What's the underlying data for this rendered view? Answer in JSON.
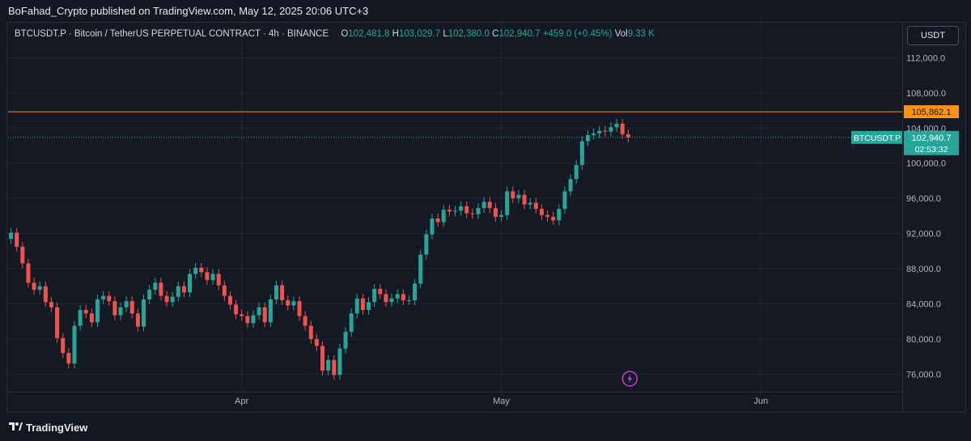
{
  "header": {
    "publisher_line": "BoFahad_Crypto published on TradingView.com, May 12, 2025 20:06 UTC+3"
  },
  "legend": {
    "symbol_line": "BTCUSDT.P · Bitcoin / TetherUS PERPETUAL CONTRACT · 4h · BINANCE",
    "o_label": "O",
    "o_value": "102,481.8",
    "h_label": "H",
    "h_value": "103,029.7",
    "l_label": "L",
    "l_value": "102,380.0",
    "c_label": "C",
    "c_value": "102,940.7",
    "change": "+459.0 (+0.45%)",
    "vol_label": "Vol",
    "vol_value": "9.33 K"
  },
  "currency_button": "USDT",
  "footer": {
    "brand": "TradingView"
  },
  "colors": {
    "up": "#26a69a",
    "down": "#ef5350",
    "resistance_line": "#f7931a",
    "background": "#151924",
    "grid": "#222633"
  },
  "chart_data": {
    "type": "line",
    "series": [
      {
        "values": [
          92100,
          90500,
          88600,
          86400,
          85600,
          86000,
          84200,
          83600,
          80100,
          78400,
          77200,
          81500,
          83300,
          82900,
          81900,
          84500,
          84900,
          84300,
          82700,
          83600,
          84300,
          82900,
          81400,
          84500,
          85600,
          86400,
          84900,
          84200,
          84800,
          86000,
          85300,
          87400,
          88100,
          87600,
          86700,
          87400,
          86100,
          84900,
          83900,
          82800,
          82600,
          81800,
          82700,
          83600,
          81900,
          84500,
          86100,
          84400,
          83800,
          84300,
          82600,
          81500,
          80000,
          79200,
          76400,
          77600,
          75900,
          78900,
          80800,
          82900,
          84600,
          83300,
          84200,
          85700,
          85100,
          84200,
          84600,
          85100,
          84400,
          84400,
          86300,
          89600,
          91900,
          93700,
          93300,
          94700,
          94500,
          94600,
          95100,
          94300,
          94200,
          94900,
          95600,
          94900,
          93900,
          94100,
          96800,
          96000,
          96400,
          95300,
          95500,
          94800,
          94100,
          93900,
          93500,
          94800,
          96800,
          98200,
          99800,
          102500,
          103200,
          103400,
          103700,
          103600,
          104100,
          104500,
          103300,
          102940
        ],
        "color": "#26a69a"
      }
    ],
    "resistance": 105862.1,
    "current_price": 102940.7,
    "y_ticks": [
      76000,
      80000,
      84000,
      88000,
      92000,
      96000,
      100000,
      104000,
      108000,
      112000
    ],
    "y_tick_labels": [
      "76,000.0",
      "80,000.0",
      "84,000.0",
      "88,000.0",
      "92,000.0",
      "96,000.0",
      "100,000.0",
      "104,000.0",
      "108,000.0",
      "112,000.0"
    ],
    "ylim": [
      74000,
      116000
    ],
    "x_ticks": [
      {
        "label": "Apr",
        "index": 40
      },
      {
        "label": "May",
        "index": 85
      },
      {
        "label": "Jun",
        "index": 130
      }
    ],
    "x_count": 155,
    "resistance_label": "105,862.1",
    "current_label": "102,940.7",
    "countdown_label": "02:53:32",
    "symbol_tag": "BTCUSDT.P",
    "grid": true
  }
}
